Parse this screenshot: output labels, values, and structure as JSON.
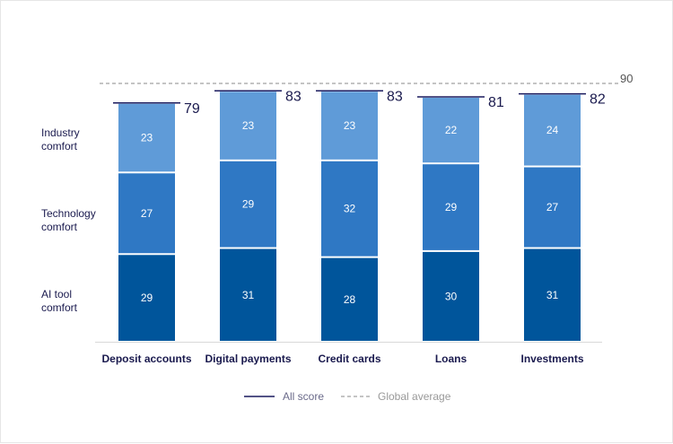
{
  "chart_data": {
    "type": "bar",
    "stacked": true,
    "categories": [
      "Deposit accounts",
      "Digital payments",
      "Credit cards",
      "Loans",
      "Investments"
    ],
    "series": [
      {
        "name": "AI tool comfort",
        "values": [
          29,
          31,
          28,
          30,
          31
        ],
        "color": "#00559b"
      },
      {
        "name": "Technology comfort",
        "values": [
          27,
          29,
          32,
          29,
          27
        ],
        "color": "#2f78c4"
      },
      {
        "name": "Industry comfort",
        "values": [
          23,
          23,
          23,
          22,
          24
        ],
        "color": "#5f9bd8"
      }
    ],
    "totals": [
      79,
      83,
      83,
      81,
      82
    ],
    "global_average": 90,
    "legend": {
      "all_score": "All score",
      "global_average": "Global average",
      "placement": "bottom"
    },
    "row_labels": [
      "Industry\ncomfort",
      "Technology\ncomfort",
      "AI tool\ncomfort"
    ],
    "colors": {
      "total_line": "#1a1a5e",
      "global_line": "#8a8a8a",
      "label_text": "#1a1a4e"
    }
  }
}
